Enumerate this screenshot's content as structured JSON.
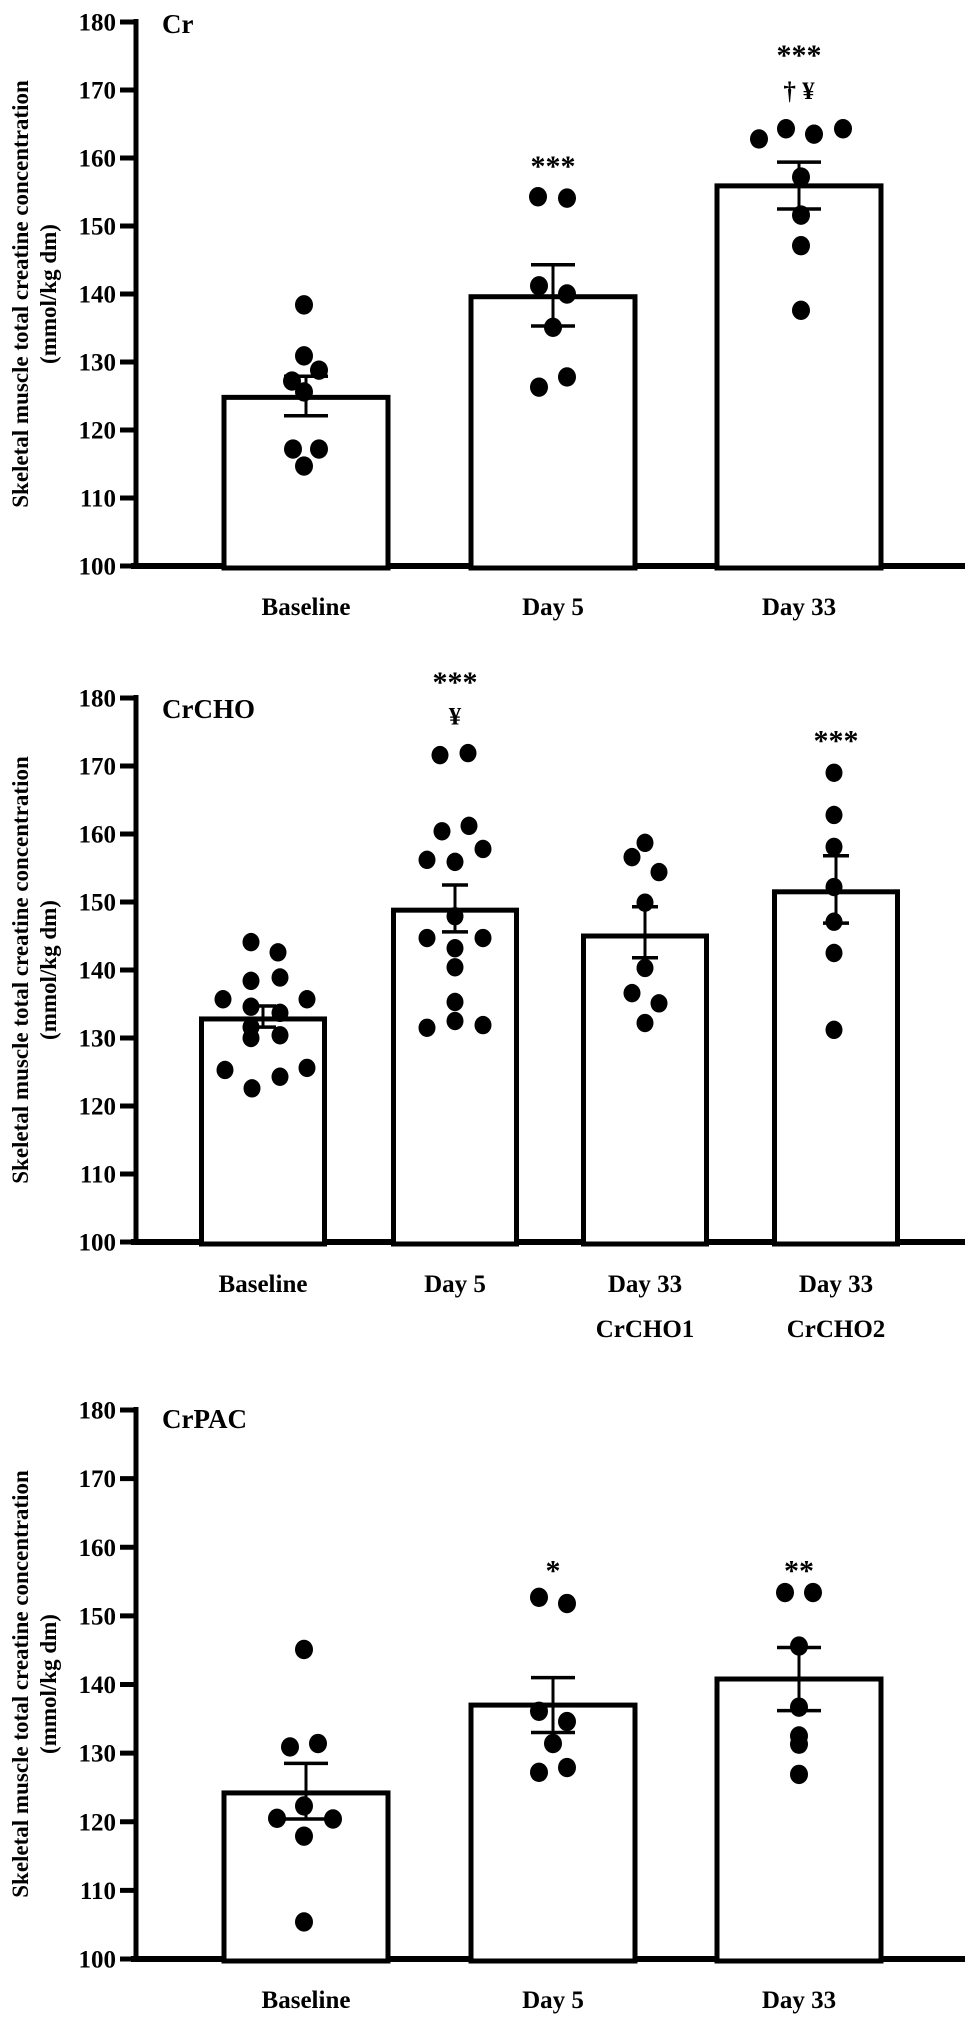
{
  "figure": {
    "y_axis_label_line1": "Skeletal muscle total creatine concentration",
    "y_axis_label_line2": "(mmol/kg dm)",
    "y_ticks": [
      180,
      170,
      160,
      150,
      140,
      130,
      120,
      110,
      100
    ],
    "ink_color": "#000000",
    "background_color": "#ffffff"
  },
  "chart_data": [
    {
      "type": "bar",
      "title": "Cr",
      "ylabel": "Skeletal muscle total creatine concentration (mmol/kg dm)",
      "ylim": [
        100,
        180
      ],
      "grid": false,
      "categories": [
        "Baseline",
        "Day 5",
        "Day 33"
      ],
      "bars": [
        {
          "label": "Baseline",
          "label2": "",
          "mean": 124.8,
          "err_lo": 122.1,
          "err_hi": 127.9,
          "points": [
            [
              138.4,
              -2
            ],
            [
              130.9,
              -2
            ],
            [
              128.8,
              13
            ],
            [
              127.2,
              -14
            ],
            [
              125.6,
              -2
            ],
            [
              117.2,
              -13
            ],
            [
              117.2,
              13
            ],
            [
              114.7,
              -2
            ]
          ],
          "sig": []
        },
        {
          "label": "Day 5",
          "label2": "",
          "mean": 139.6,
          "err_lo": 135.3,
          "err_hi": 144.3,
          "points": [
            [
              154.3,
              -15
            ],
            [
              154.1,
              14
            ],
            [
              141.2,
              -14
            ],
            [
              140.0,
              14
            ],
            [
              135.1,
              0
            ],
            [
              127.8,
              14
            ],
            [
              126.3,
              -14
            ]
          ],
          "sig": [
            {
              "text": "***",
              "v": 159.7
            }
          ]
        },
        {
          "label": "Day 33",
          "label2": "",
          "mean": 155.9,
          "err_lo": 152.5,
          "err_hi": 159.4,
          "points": [
            [
              164.3,
              -13
            ],
            [
              164.3,
              44
            ],
            [
              163.5,
              15
            ],
            [
              162.8,
              -40
            ],
            [
              157.2,
              2
            ],
            [
              151.6,
              2
            ],
            [
              147.1,
              2
            ],
            [
              137.6,
              2
            ]
          ],
          "sig": [
            {
              "text": "***",
              "v": 176.0
            },
            {
              "text": "† ¥",
              "v": 170.0
            }
          ]
        }
      ]
    },
    {
      "type": "bar",
      "title": "CrCHO",
      "ylabel": "Skeletal muscle total creatine concentration (mmol/kg dm)",
      "ylim": [
        100,
        180
      ],
      "grid": false,
      "categories": [
        "Baseline",
        "Day 5",
        "Day 33 CrCHO1",
        "Day 33 CrCHO2"
      ],
      "bars": [
        {
          "label": "Baseline",
          "label2": "",
          "mean": 132.8,
          "err_lo": 131.6,
          "err_hi": 134.7,
          "points": [
            [
              144.1,
              -12
            ],
            [
              142.6,
              15
            ],
            [
              138.9,
              17
            ],
            [
              138.4,
              -12
            ],
            [
              135.7,
              -40
            ],
            [
              135.7,
              44
            ],
            [
              134.6,
              -12
            ],
            [
              133.7,
              17
            ],
            [
              131.6,
              -12
            ],
            [
              130.4,
              17
            ],
            [
              130.0,
              -12
            ],
            [
              125.6,
              44
            ],
            [
              125.3,
              -38
            ],
            [
              124.3,
              17
            ],
            [
              122.6,
              -11
            ]
          ],
          "sig": []
        },
        {
          "label": "Day 5",
          "label2": "",
          "mean": 148.8,
          "err_lo": 145.6,
          "err_hi": 152.5,
          "points": [
            [
              171.9,
              13
            ],
            [
              171.6,
              -15
            ],
            [
              161.2,
              14
            ],
            [
              160.4,
              -13
            ],
            [
              157.8,
              28
            ],
            [
              156.2,
              -28
            ],
            [
              155.9,
              0
            ],
            [
              147.9,
              0
            ],
            [
              144.7,
              -28
            ],
            [
              144.7,
              28
            ],
            [
              143.2,
              0
            ],
            [
              140.4,
              0
            ],
            [
              135.3,
              0
            ],
            [
              132.5,
              0
            ],
            [
              131.9,
              28
            ],
            [
              131.5,
              -28
            ]
          ],
          "sig": [
            {
              "text": "***",
              "v": 183.2
            },
            {
              "text": "¥",
              "v": 177.4
            }
          ]
        },
        {
          "label": "Day 33",
          "label2": "CrCHO1",
          "mean": 145.0,
          "err_lo": 141.8,
          "err_hi": 149.3,
          "points": [
            [
              158.7,
              0
            ],
            [
              156.6,
              -13
            ],
            [
              154.4,
              14
            ],
            [
              149.9,
              0
            ],
            [
              140.3,
              0
            ],
            [
              136.6,
              -13
            ],
            [
              135.1,
              14
            ],
            [
              132.2,
              0
            ]
          ],
          "sig": []
        },
        {
          "label": "Day 33",
          "label2": "CrCHO2",
          "mean": 151.5,
          "err_lo": 146.9,
          "err_hi": 156.8,
          "points": [
            [
              169.0,
              -2
            ],
            [
              162.8,
              -2
            ],
            [
              158.1,
              -2
            ],
            [
              152.2,
              -2
            ],
            [
              147.1,
              -2
            ],
            [
              142.5,
              -2
            ],
            [
              131.2,
              -2
            ]
          ],
          "sig": [
            {
              "text": "***",
              "v": 174.6
            }
          ]
        }
      ]
    },
    {
      "type": "bar",
      "title": "CrPAC",
      "ylabel": "Skeletal muscle total creatine concentration (mmol/kg dm)",
      "ylim": [
        100,
        180
      ],
      "grid": false,
      "categories": [
        "Baseline",
        "Day 5",
        "Day 33"
      ],
      "bars": [
        {
          "label": "Baseline",
          "label2": "",
          "mean": 124.2,
          "err_lo": 120.4,
          "err_hi": 128.5,
          "points": [
            [
              145.1,
              -2
            ],
            [
              131.4,
              12
            ],
            [
              130.9,
              -16
            ],
            [
              122.3,
              -2
            ],
            [
              120.5,
              -29
            ],
            [
              120.4,
              27
            ],
            [
              117.9,
              -2
            ],
            [
              105.4,
              -2
            ]
          ],
          "sig": []
        },
        {
          "label": "Day 5",
          "label2": "",
          "mean": 137.0,
          "err_lo": 133.0,
          "err_hi": 141.0,
          "points": [
            [
              152.7,
              -14
            ],
            [
              151.8,
              14
            ],
            [
              136.1,
              -14
            ],
            [
              134.6,
              14
            ],
            [
              131.4,
              0
            ],
            [
              127.9,
              14
            ],
            [
              127.2,
              -14
            ]
          ],
          "sig": [
            {
              "text": "*",
              "v": 157.5
            }
          ]
        },
        {
          "label": "Day 33",
          "label2": "",
          "mean": 140.8,
          "err_lo": 136.2,
          "err_hi": 145.4,
          "points": [
            [
              153.4,
              -14
            ],
            [
              153.4,
              14
            ],
            [
              145.6,
              0
            ],
            [
              136.7,
              0
            ],
            [
              132.5,
              0
            ],
            [
              131.3,
              0
            ],
            [
              126.9,
              0
            ]
          ],
          "sig": [
            {
              "text": "**",
              "v": 157.5
            }
          ]
        }
      ]
    }
  ]
}
